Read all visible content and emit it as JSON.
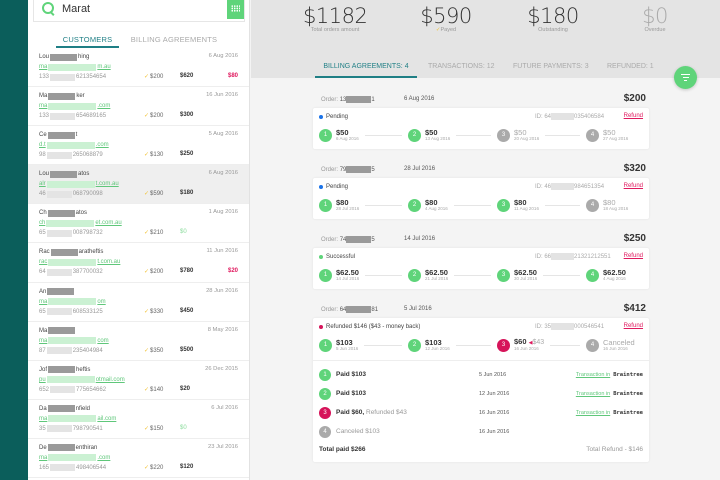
{
  "search": {
    "value": "Marat",
    "placeholder": "Search"
  },
  "left_tabs": [
    {
      "label": "CUSTOMERS",
      "active": true
    },
    {
      "label": "BILLING AGREEMENTS",
      "active": false
    }
  ],
  "customers": [
    {
      "name_start": "Lou",
      "name_end": "hing",
      "email_start": "ma",
      "email_end": "m.au",
      "phone_start": "133",
      "phone_end": "621354654",
      "date": "6 Aug 2016",
      "paid": "$200",
      "total": "$620",
      "due": "$80",
      "selected": false
    },
    {
      "name_start": "Ma",
      "name_end": "ker",
      "email_start": "ma",
      "email_end": ".com",
      "phone_start": "133",
      "phone_end": "654689165",
      "date": "16 Jun 2016",
      "paid": "$200",
      "total": "$300",
      "due": "",
      "selected": false
    },
    {
      "name_start": "Ce",
      "name_end": "t",
      "email_start": "d.t",
      "email_end": ".com",
      "phone_start": "98",
      "phone_end": "265068879",
      "date": "5 Aug 2016",
      "paid": "$130",
      "total": "$250",
      "due": "",
      "selected": false
    },
    {
      "name_start": "Lou",
      "name_end": "atos",
      "email_start": "alr",
      "email_end": "t.com.au",
      "phone_start": "46",
      "phone_end": "068790098",
      "date": "6 Aug 2016",
      "paid": "$590",
      "total": "$180",
      "due": "",
      "selected": true
    },
    {
      "name_start": "Ch",
      "name_end": "atos",
      "email_start": "ch",
      "email_end": "et.com.au",
      "phone_start": "65",
      "phone_end": "008798732",
      "date": "1 Aug 2016",
      "paid": "$210",
      "total": "$0",
      "due": "",
      "selected": false
    },
    {
      "name_start": "Rac",
      "name_end": "aratheftis",
      "email_start": "rac",
      "email_end": "t.com.au",
      "phone_start": "64",
      "phone_end": "387700032",
      "date": "11 Jun 2016",
      "paid": "$200",
      "total": "$780",
      "due": "$20",
      "selected": false
    },
    {
      "name_start": "An",
      "name_end": "",
      "email_start": "ma",
      "email_end": "om",
      "phone_start": "65",
      "phone_end": "608533125",
      "date": "28 Jun 2016",
      "paid": "$330",
      "total": "$450",
      "due": "",
      "selected": false
    },
    {
      "name_start": "Ma",
      "name_end": "",
      "email_start": "ma",
      "email_end": "com",
      "phone_start": "87",
      "phone_end": "235404984",
      "date": "8 May 2016",
      "paid": "$350",
      "total": "$500",
      "due": "",
      "selected": false
    },
    {
      "name_start": "Jof",
      "name_end": "heftis",
      "email_start": "pu",
      "email_end": "otmail.com",
      "phone_start": "652",
      "phone_end": "775654662",
      "date": "26 Dec 2015",
      "paid": "$140",
      "total": "$20",
      "due": "",
      "selected": false
    },
    {
      "name_start": "Da",
      "name_end": "nfield",
      "email_start": "ma",
      "email_end": "ail.com",
      "phone_start": "35",
      "phone_end": "798790541",
      "date": "6 Jul 2016",
      "paid": "$150",
      "total": "$0",
      "due": "",
      "selected": false
    },
    {
      "name_start": "De",
      "name_end": "enthiran",
      "email_start": "ma",
      "email_end": ".com",
      "phone_start": "165",
      "phone_end": "498406544",
      "date": "23 Jul 2016",
      "paid": "$220",
      "total": "$120",
      "due": "",
      "selected": false
    }
  ],
  "stats": [
    {
      "amount": "$1182",
      "label": "Total orders amount"
    },
    {
      "amount": "$590",
      "label": "Payed"
    },
    {
      "amount": "$180",
      "label": "Outstanding"
    },
    {
      "amount": "$0",
      "label": "Overdue"
    }
  ],
  "right_tabs": [
    {
      "label": "BILLING AGREEMENTS: 4",
      "active": true
    },
    {
      "label": "TRANSACTIONS: 12",
      "active": false
    },
    {
      "label": "FUTURE PAYMENTS: 3",
      "active": false
    },
    {
      "label": "REFUNDED: 1",
      "active": false
    }
  ],
  "colors": {
    "accent": "#1f7f85",
    "rail": "#0b5e5b",
    "green": "#5fd47a",
    "red": "#e0185e",
    "pending": "#1a73e8"
  },
  "agreements": [
    {
      "order_label": "Order:",
      "order_start": "13",
      "order_end": "1",
      "date": "6 Aug 2016",
      "amount": "$200",
      "status": "Pending",
      "status_color": "#1a73e8",
      "id_start": "ID: 64",
      "id_end": "035406584",
      "refund_label": "Refund",
      "steps": [
        {
          "n": "1",
          "amount": "$50",
          "date": "6 Aug 2016",
          "state": "green"
        },
        {
          "n": "2",
          "amount": "$50",
          "date": "13 Aug 2016",
          "state": "green"
        },
        {
          "n": "3",
          "amount": "$50",
          "date": "20 Aug 2016",
          "state": "grey"
        },
        {
          "n": "4",
          "amount": "$50",
          "date": "27 Aug 2016",
          "state": "grey"
        }
      ]
    },
    {
      "order_label": "Order:",
      "order_start": "79",
      "order_end": "5",
      "date": "28 Jul 2016",
      "amount": "$320",
      "status": "Pending",
      "status_color": "#1a73e8",
      "id_start": "ID: 46",
      "id_end": "984651354",
      "refund_label": "Refund",
      "steps": [
        {
          "n": "1",
          "amount": "$80",
          "date": "28 Jul 2016",
          "state": "green"
        },
        {
          "n": "2",
          "amount": "$80",
          "date": "4 Aug 2016",
          "state": "green"
        },
        {
          "n": "3",
          "amount": "$80",
          "date": "11 Aug 2016",
          "state": "green"
        },
        {
          "n": "4",
          "amount": "$80",
          "date": "18 Aug 2016",
          "state": "grey"
        }
      ]
    },
    {
      "order_label": "Order:",
      "order_start": "74",
      "order_end": "5",
      "date": "14 Jul 2016",
      "amount": "$250",
      "status": "Successful",
      "status_color": "#5fd47a",
      "id_start": "ID: 66",
      "id_end": "21321212551",
      "refund_label": "Refund",
      "steps": [
        {
          "n": "1",
          "amount": "$62.50",
          "date": "14 Jul 2016",
          "state": "green"
        },
        {
          "n": "2",
          "amount": "$62.50",
          "date": "21 Jul 2016",
          "state": "green"
        },
        {
          "n": "3",
          "amount": "$62.50",
          "date": "30 Jul 2016",
          "state": "green"
        },
        {
          "n": "4",
          "amount": "$62.50",
          "date": "4 Aug 2016",
          "state": "green"
        }
      ]
    },
    {
      "order_label": "Order:",
      "order_start": "64",
      "order_end": "81",
      "date": "5 Jul 2016",
      "amount": "$412",
      "status": "Refunded $146 ($43 - money back)",
      "status_color": "#d6145a",
      "id_start": "ID: 35",
      "id_end": "000546541",
      "refund_label": "Refund",
      "steps": [
        {
          "n": "1",
          "amount": "$103",
          "date": "5 Jun 2016",
          "state": "green"
        },
        {
          "n": "2",
          "amount": "$103",
          "date": "12 Jun 2016",
          "state": "green"
        },
        {
          "n": "3",
          "amount": "$60",
          "refunded": "$43",
          "date": "16 Jun 2016",
          "state": "red"
        },
        {
          "n": "4",
          "amount": "Canceled",
          "date": "16 Jun 2016",
          "state": "grey"
        }
      ],
      "details": [
        {
          "n": "1",
          "label": "Paid $103",
          "extra": "",
          "date": "5 Jun 2016",
          "state": "green",
          "link": "Transaction in",
          "provider": "Braintree"
        },
        {
          "n": "2",
          "label": "Paid $103",
          "extra": "",
          "date": "12 Jun 2016",
          "state": "green",
          "link": "Transaction in",
          "provider": "Braintree"
        },
        {
          "n": "3",
          "label": "Paid $60,",
          "extra": "Refunded $43",
          "date": "16 Jun 2016",
          "state": "red",
          "link": "Transaction in",
          "provider": "Braintree"
        },
        {
          "n": "4",
          "label": "Canceled $103",
          "extra": "",
          "date": "16 Jun 2016",
          "state": "grey",
          "link": "",
          "provider": ""
        }
      ],
      "total_paid": "Total paid $266",
      "total_refund": "Total Refund - $146"
    }
  ]
}
